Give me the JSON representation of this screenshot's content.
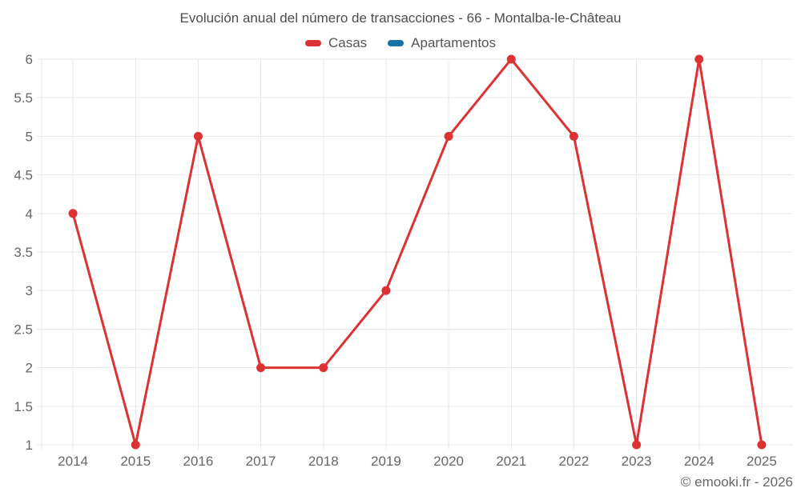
{
  "chart_data": {
    "type": "line",
    "title": "Evolución anual del número de transacciones - 66 - Montalba-le-Château",
    "categories": [
      "2014",
      "2015",
      "2016",
      "2017",
      "2018",
      "2019",
      "2020",
      "2021",
      "2022",
      "2023",
      "2024",
      "2025"
    ],
    "series": [
      {
        "name": "Casas",
        "color": "#dc3232",
        "values": [
          4,
          1,
          5,
          2,
          2,
          3,
          5,
          6,
          5,
          1,
          6,
          1
        ]
      },
      {
        "name": "Apartamentos",
        "color": "#1673a3",
        "values": []
      }
    ],
    "xlabel": "",
    "ylabel": "",
    "ylim": [
      1,
      6
    ],
    "yticks": [
      1,
      1.5,
      2,
      2.5,
      3,
      3.5,
      4,
      4.5,
      5,
      5.5,
      6
    ],
    "grid": true,
    "legend_position": "top",
    "marker": "circle",
    "colors": {
      "grid": "#e8e8e8",
      "axis_text": "#666666",
      "title_text": "#4c4c4c"
    }
  },
  "footer": {
    "text": "© emooki.fr - 2026"
  }
}
